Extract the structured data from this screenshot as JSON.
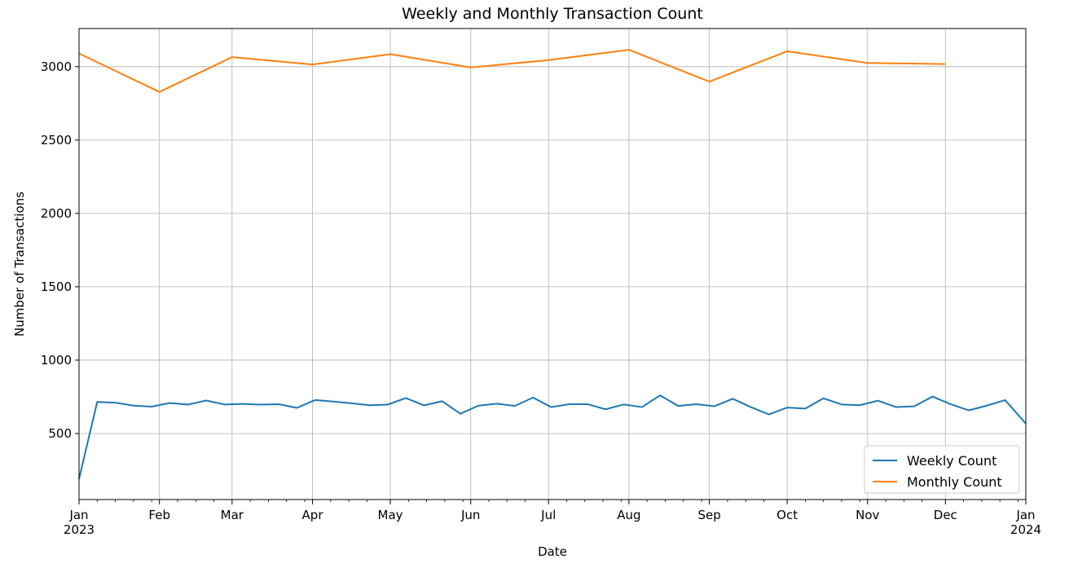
{
  "chart_data": {
    "type": "line",
    "title": "Weekly and Monthly Transaction Count",
    "xlabel": "Date",
    "ylabel": "Number of Transactions",
    "xlim": [
      "2023-01-01",
      "2024-01-01"
    ],
    "ylim": [
      50,
      3260
    ],
    "yticks": [
      500,
      1000,
      1500,
      2000,
      2500,
      3000
    ],
    "xticks": [
      {
        "date": "2023-01-01",
        "label": "Jan",
        "sublabel": "2023"
      },
      {
        "date": "2023-02-01",
        "label": "Feb",
        "sublabel": ""
      },
      {
        "date": "2023-03-01",
        "label": "Mar",
        "sublabel": ""
      },
      {
        "date": "2023-04-01",
        "label": "Apr",
        "sublabel": ""
      },
      {
        "date": "2023-05-01",
        "label": "May",
        "sublabel": ""
      },
      {
        "date": "2023-06-01",
        "label": "Jun",
        "sublabel": ""
      },
      {
        "date": "2023-07-01",
        "label": "Jul",
        "sublabel": ""
      },
      {
        "date": "2023-08-01",
        "label": "Aug",
        "sublabel": ""
      },
      {
        "date": "2023-09-01",
        "label": "Sep",
        "sublabel": ""
      },
      {
        "date": "2023-10-01",
        "label": "Oct",
        "sublabel": ""
      },
      {
        "date": "2023-11-01",
        "label": "Nov",
        "sublabel": ""
      },
      {
        "date": "2023-12-01",
        "label": "Dec",
        "sublabel": ""
      },
      {
        "date": "2024-01-01",
        "label": "Jan",
        "sublabel": "2024"
      }
    ],
    "grid": true,
    "legend_position": "lower-right",
    "series": [
      {
        "name": "Weekly Count",
        "color": "#1f77b4",
        "points": [
          [
            "2023-01-01",
            190
          ],
          [
            "2023-01-08",
            715
          ],
          [
            "2023-01-15",
            710
          ],
          [
            "2023-01-22",
            690
          ],
          [
            "2023-01-29",
            683
          ],
          [
            "2023-02-05",
            708
          ],
          [
            "2023-02-12",
            697
          ],
          [
            "2023-02-19",
            725
          ],
          [
            "2023-02-26",
            698
          ],
          [
            "2023-03-05",
            702
          ],
          [
            "2023-03-12",
            697
          ],
          [
            "2023-03-19",
            700
          ],
          [
            "2023-03-26",
            675
          ],
          [
            "2023-04-02",
            728
          ],
          [
            "2023-04-09",
            718
          ],
          [
            "2023-04-16",
            706
          ],
          [
            "2023-04-23",
            693
          ],
          [
            "2023-04-30",
            697
          ],
          [
            "2023-05-07",
            742
          ],
          [
            "2023-05-14",
            692
          ],
          [
            "2023-05-21",
            720
          ],
          [
            "2023-05-28",
            635
          ],
          [
            "2023-06-04",
            690
          ],
          [
            "2023-06-11",
            703
          ],
          [
            "2023-06-18",
            688
          ],
          [
            "2023-06-25",
            745
          ],
          [
            "2023-07-02",
            680
          ],
          [
            "2023-07-09",
            700
          ],
          [
            "2023-07-16",
            700
          ],
          [
            "2023-07-23",
            665
          ],
          [
            "2023-07-30",
            698
          ],
          [
            "2023-08-06",
            680
          ],
          [
            "2023-08-13",
            760
          ],
          [
            "2023-08-20",
            688
          ],
          [
            "2023-08-27",
            700
          ],
          [
            "2023-09-03",
            686
          ],
          [
            "2023-09-10",
            737
          ],
          [
            "2023-09-17",
            680
          ],
          [
            "2023-09-24",
            630
          ],
          [
            "2023-10-01",
            677
          ],
          [
            "2023-10-08",
            670
          ],
          [
            "2023-10-15",
            740
          ],
          [
            "2023-10-22",
            698
          ],
          [
            "2023-10-29",
            693
          ],
          [
            "2023-11-05",
            724
          ],
          [
            "2023-11-12",
            680
          ],
          [
            "2023-11-19",
            685
          ],
          [
            "2023-11-26",
            752
          ],
          [
            "2023-12-03",
            700
          ],
          [
            "2023-12-10",
            658
          ],
          [
            "2023-12-17",
            690
          ],
          [
            "2023-12-24",
            728
          ],
          [
            "2024-01-01",
            568
          ]
        ]
      },
      {
        "name": "Monthly Count",
        "color": "#ff7f0e",
        "points": [
          [
            "2023-01-01",
            3090
          ],
          [
            "2023-02-01",
            2828
          ],
          [
            "2023-03-01",
            3065
          ],
          [
            "2023-04-01",
            3015
          ],
          [
            "2023-05-01",
            3085
          ],
          [
            "2023-06-01",
            2995
          ],
          [
            "2023-07-01",
            3045
          ],
          [
            "2023-08-01",
            3115
          ],
          [
            "2023-09-01",
            2898
          ],
          [
            "2023-10-01",
            3105
          ],
          [
            "2023-11-01",
            3025
          ],
          [
            "2023-12-01",
            3018
          ]
        ]
      }
    ]
  }
}
